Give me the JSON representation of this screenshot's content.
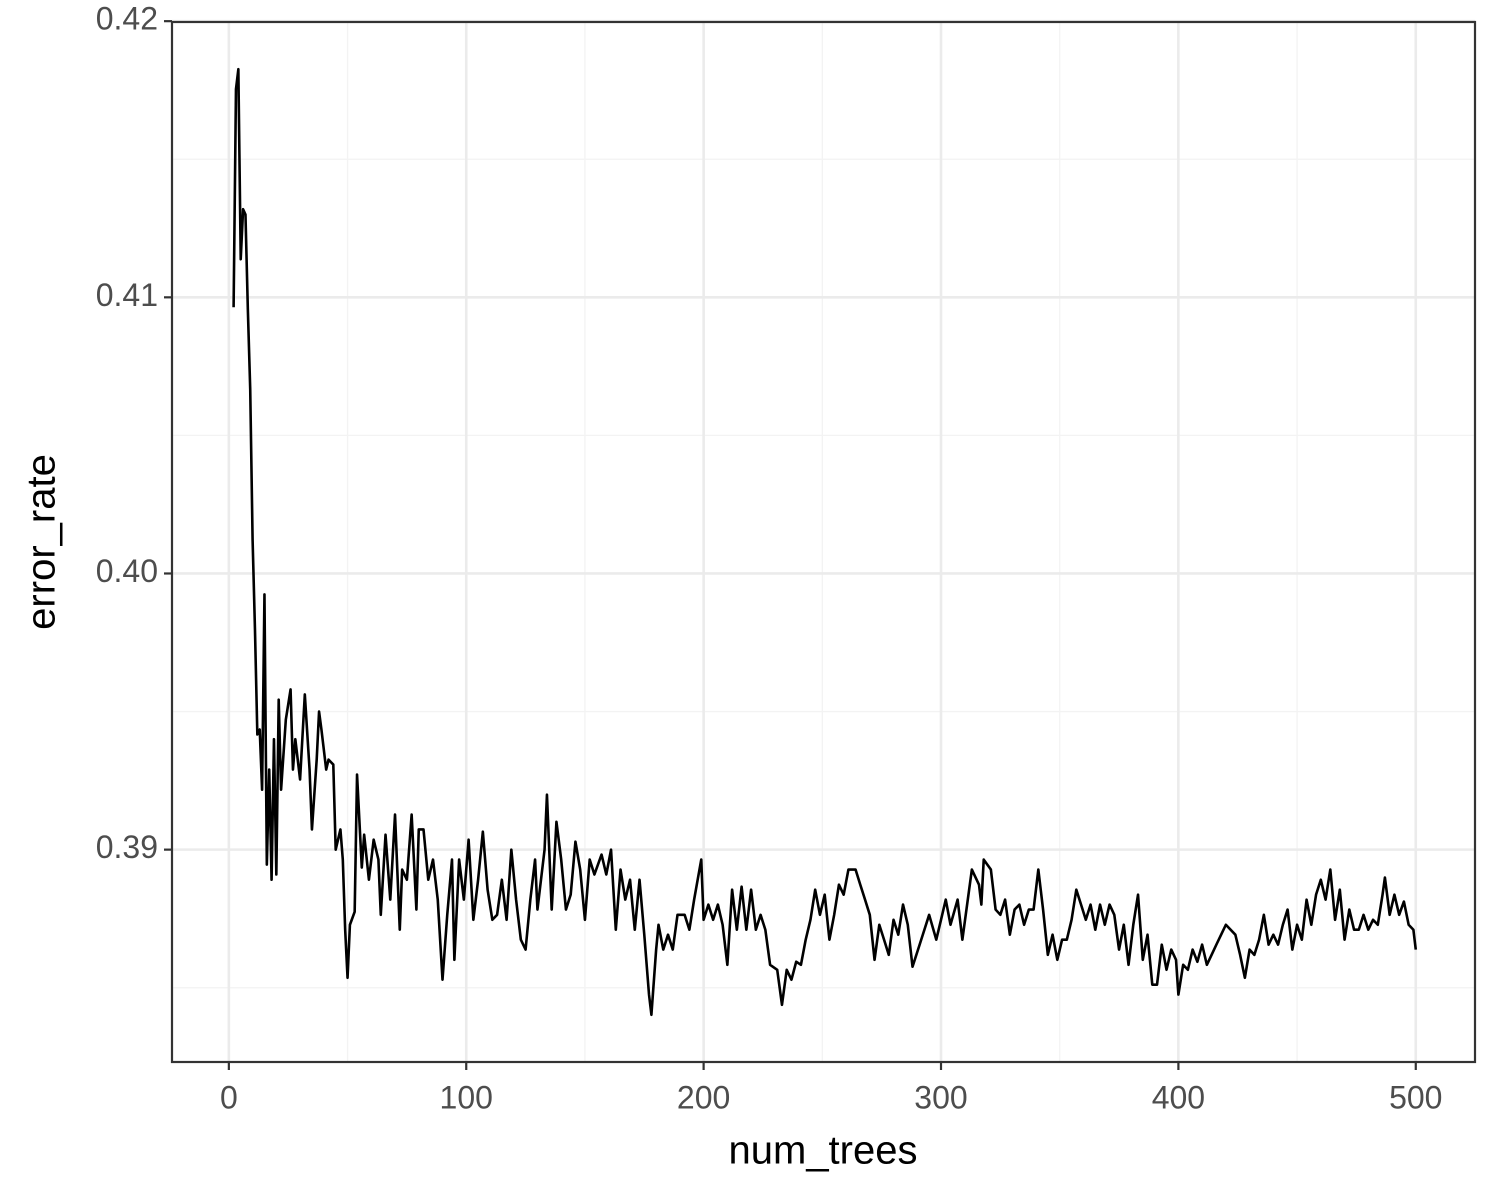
{
  "chart_data": {
    "type": "line",
    "x_label": "num_trees",
    "y_label": "error_rate",
    "xlim": [
      -23.95,
      524.95
    ],
    "ylim": [
      0.38231,
      0.41997
    ],
    "xticks": [
      0,
      100,
      200,
      300,
      400,
      500
    ],
    "yticks": [
      0.39,
      {
        "value": 0.4,
        "label": "0.40"
      },
      0.41,
      0.42
    ],
    "grid": true,
    "x": [
      2,
      3,
      4,
      5,
      6,
      7,
      8,
      9,
      10,
      11,
      12,
      13,
      14,
      15,
      16,
      17,
      18,
      19,
      20,
      21,
      22,
      24,
      26,
      27,
      28,
      30,
      32,
      34,
      35,
      37,
      38,
      39,
      41,
      42,
      44,
      45,
      47,
      48,
      49,
      50,
      51,
      53,
      54,
      56,
      57,
      59,
      61,
      63,
      64,
      66,
      68,
      70,
      72,
      73,
      75,
      77,
      79,
      80,
      82,
      84,
      86,
      88,
      90,
      92,
      94,
      95,
      97,
      99,
      101,
      103,
      105,
      107,
      109,
      111,
      113,
      115,
      117,
      119,
      121,
      123,
      125,
      127,
      129,
      130,
      133,
      134,
      136,
      138,
      140,
      142,
      144,
      146,
      148,
      150,
      152,
      154,
      157,
      159,
      161,
      163,
      165,
      167,
      169,
      171,
      173,
      175,
      177,
      178,
      180,
      181,
      183,
      185,
      187,
      189,
      192,
      194,
      196,
      199,
      200,
      202,
      204,
      206,
      208,
      210,
      212,
      214,
      216,
      218,
      220,
      222,
      224,
      226,
      228,
      231,
      233,
      235,
      237,
      239,
      241,
      243,
      245,
      247,
      249,
      251,
      253,
      255,
      257,
      259,
      261,
      264,
      266,
      268,
      270,
      272,
      274,
      276,
      278,
      280,
      282,
      284,
      286,
      288,
      291,
      293,
      295,
      298,
      300,
      302,
      304,
      307,
      309,
      311,
      313,
      316,
      317,
      318,
      321,
      323,
      325,
      327,
      329,
      331,
      333,
      335,
      337,
      339,
      341,
      343,
      345,
      347,
      349,
      351,
      353,
      355,
      357,
      359,
      361,
      363,
      365,
      367,
      369,
      371,
      373,
      375,
      377,
      379,
      381,
      383,
      385,
      387,
      389,
      391,
      393,
      395,
      397,
      399,
      400,
      402,
      404,
      406,
      408,
      410,
      412,
      414,
      416,
      418,
      420,
      424,
      426,
      428,
      430,
      432,
      434,
      436,
      438,
      440,
      442,
      444,
      446,
      448,
      450,
      452,
      454,
      456,
      458,
      460,
      462,
      464,
      466,
      468,
      470,
      472,
      474,
      476,
      478,
      480,
      482,
      484,
      486,
      487,
      489,
      491,
      493,
      495,
      497,
      499,
      500
    ],
    "series": [
      {
        "name": "error_rate",
        "color": "#000000",
        "values": [
          0.40964,
          0.41754,
          0.41826,
          0.41138,
          0.41319,
          0.413,
          0.40957,
          0.40667,
          0.40123,
          0.39797,
          0.39417,
          0.39435,
          0.39217,
          0.39924,
          0.38946,
          0.3929,
          0.38891,
          0.394,
          0.3891,
          0.39543,
          0.39217,
          0.39471,
          0.3958,
          0.3929,
          0.394,
          0.39254,
          0.39562,
          0.3929,
          0.39073,
          0.39326,
          0.395,
          0.39435,
          0.3929,
          0.39326,
          0.39308,
          0.39,
          0.39073,
          0.38964,
          0.3871,
          0.38536,
          0.38728,
          0.38775,
          0.39272,
          0.38935,
          0.39054,
          0.38891,
          0.39036,
          0.38964,
          0.38764,
          0.39054,
          0.38819,
          0.39127,
          0.3871,
          0.38928,
          0.38891,
          0.39127,
          0.38783,
          0.39073,
          0.39073,
          0.38891,
          0.38964,
          0.38819,
          0.38529,
          0.38764,
          0.38964,
          0.38601,
          0.38964,
          0.38819,
          0.39036,
          0.38746,
          0.38891,
          0.39065,
          0.38855,
          0.38746,
          0.38764,
          0.38891,
          0.38746,
          0.39,
          0.38819,
          0.38674,
          0.38638,
          0.38819,
          0.38964,
          0.38783,
          0.39,
          0.39199,
          0.38783,
          0.39101,
          0.38964,
          0.38783,
          0.38837,
          0.39029,
          0.38928,
          0.38746,
          0.38964,
          0.3891,
          0.38982,
          0.3891,
          0.39,
          0.3871,
          0.38928,
          0.38819,
          0.38891,
          0.3871,
          0.38891,
          0.38692,
          0.38475,
          0.38402,
          0.38638,
          0.38728,
          0.38638,
          0.38692,
          0.38638,
          0.38764,
          0.38764,
          0.3871,
          0.38819,
          0.38964,
          0.38746,
          0.38801,
          0.38746,
          0.38801,
          0.38728,
          0.38583,
          0.38855,
          0.3871,
          0.38866,
          0.3871,
          0.38855,
          0.3871,
          0.38764,
          0.3871,
          0.38583,
          0.38565,
          0.38438,
          0.38565,
          0.38529,
          0.38594,
          0.38583,
          0.38674,
          0.38746,
          0.38855,
          0.38764,
          0.38837,
          0.38674,
          0.38764,
          0.38873,
          0.38837,
          0.38928,
          0.38928,
          0.38873,
          0.38819,
          0.38764,
          0.38601,
          0.38728,
          0.38674,
          0.38619,
          0.38746,
          0.38692,
          0.38801,
          0.38728,
          0.38576,
          0.38656,
          0.3871,
          0.38764,
          0.38674,
          0.38746,
          0.38819,
          0.38728,
          0.38819,
          0.38674,
          0.38801,
          0.38928,
          0.38873,
          0.38801,
          0.38964,
          0.38928,
          0.38783,
          0.38764,
          0.38819,
          0.38692,
          0.38783,
          0.38801,
          0.38728,
          0.38783,
          0.38783,
          0.38928,
          0.38783,
          0.38619,
          0.38692,
          0.38601,
          0.38674,
          0.38674,
          0.38746,
          0.38855,
          0.38801,
          0.38746,
          0.38801,
          0.3871,
          0.38801,
          0.38728,
          0.38801,
          0.38764,
          0.38638,
          0.38728,
          0.38583,
          0.38728,
          0.38837,
          0.38601,
          0.38692,
          0.38511,
          0.38511,
          0.38656,
          0.38565,
          0.38638,
          0.38601,
          0.38475,
          0.38583,
          0.38565,
          0.38638,
          0.38594,
          0.38656,
          0.38583,
          0.38619,
          0.38656,
          0.38692,
          0.38728,
          0.38692,
          0.38619,
          0.38536,
          0.38638,
          0.38619,
          0.38674,
          0.38764,
          0.38656,
          0.38692,
          0.38656,
          0.38728,
          0.38783,
          0.38638,
          0.38728,
          0.38674,
          0.38819,
          0.38728,
          0.38837,
          0.38891,
          0.38819,
          0.38928,
          0.38746,
          0.38855,
          0.38674,
          0.38783,
          0.3871,
          0.3871,
          0.38764,
          0.3871,
          0.38746,
          0.38728,
          0.38837,
          0.38899,
          0.38764,
          0.38837,
          0.38764,
          0.38812,
          0.38728,
          0.3871,
          0.38638
        ]
      }
    ]
  }
}
